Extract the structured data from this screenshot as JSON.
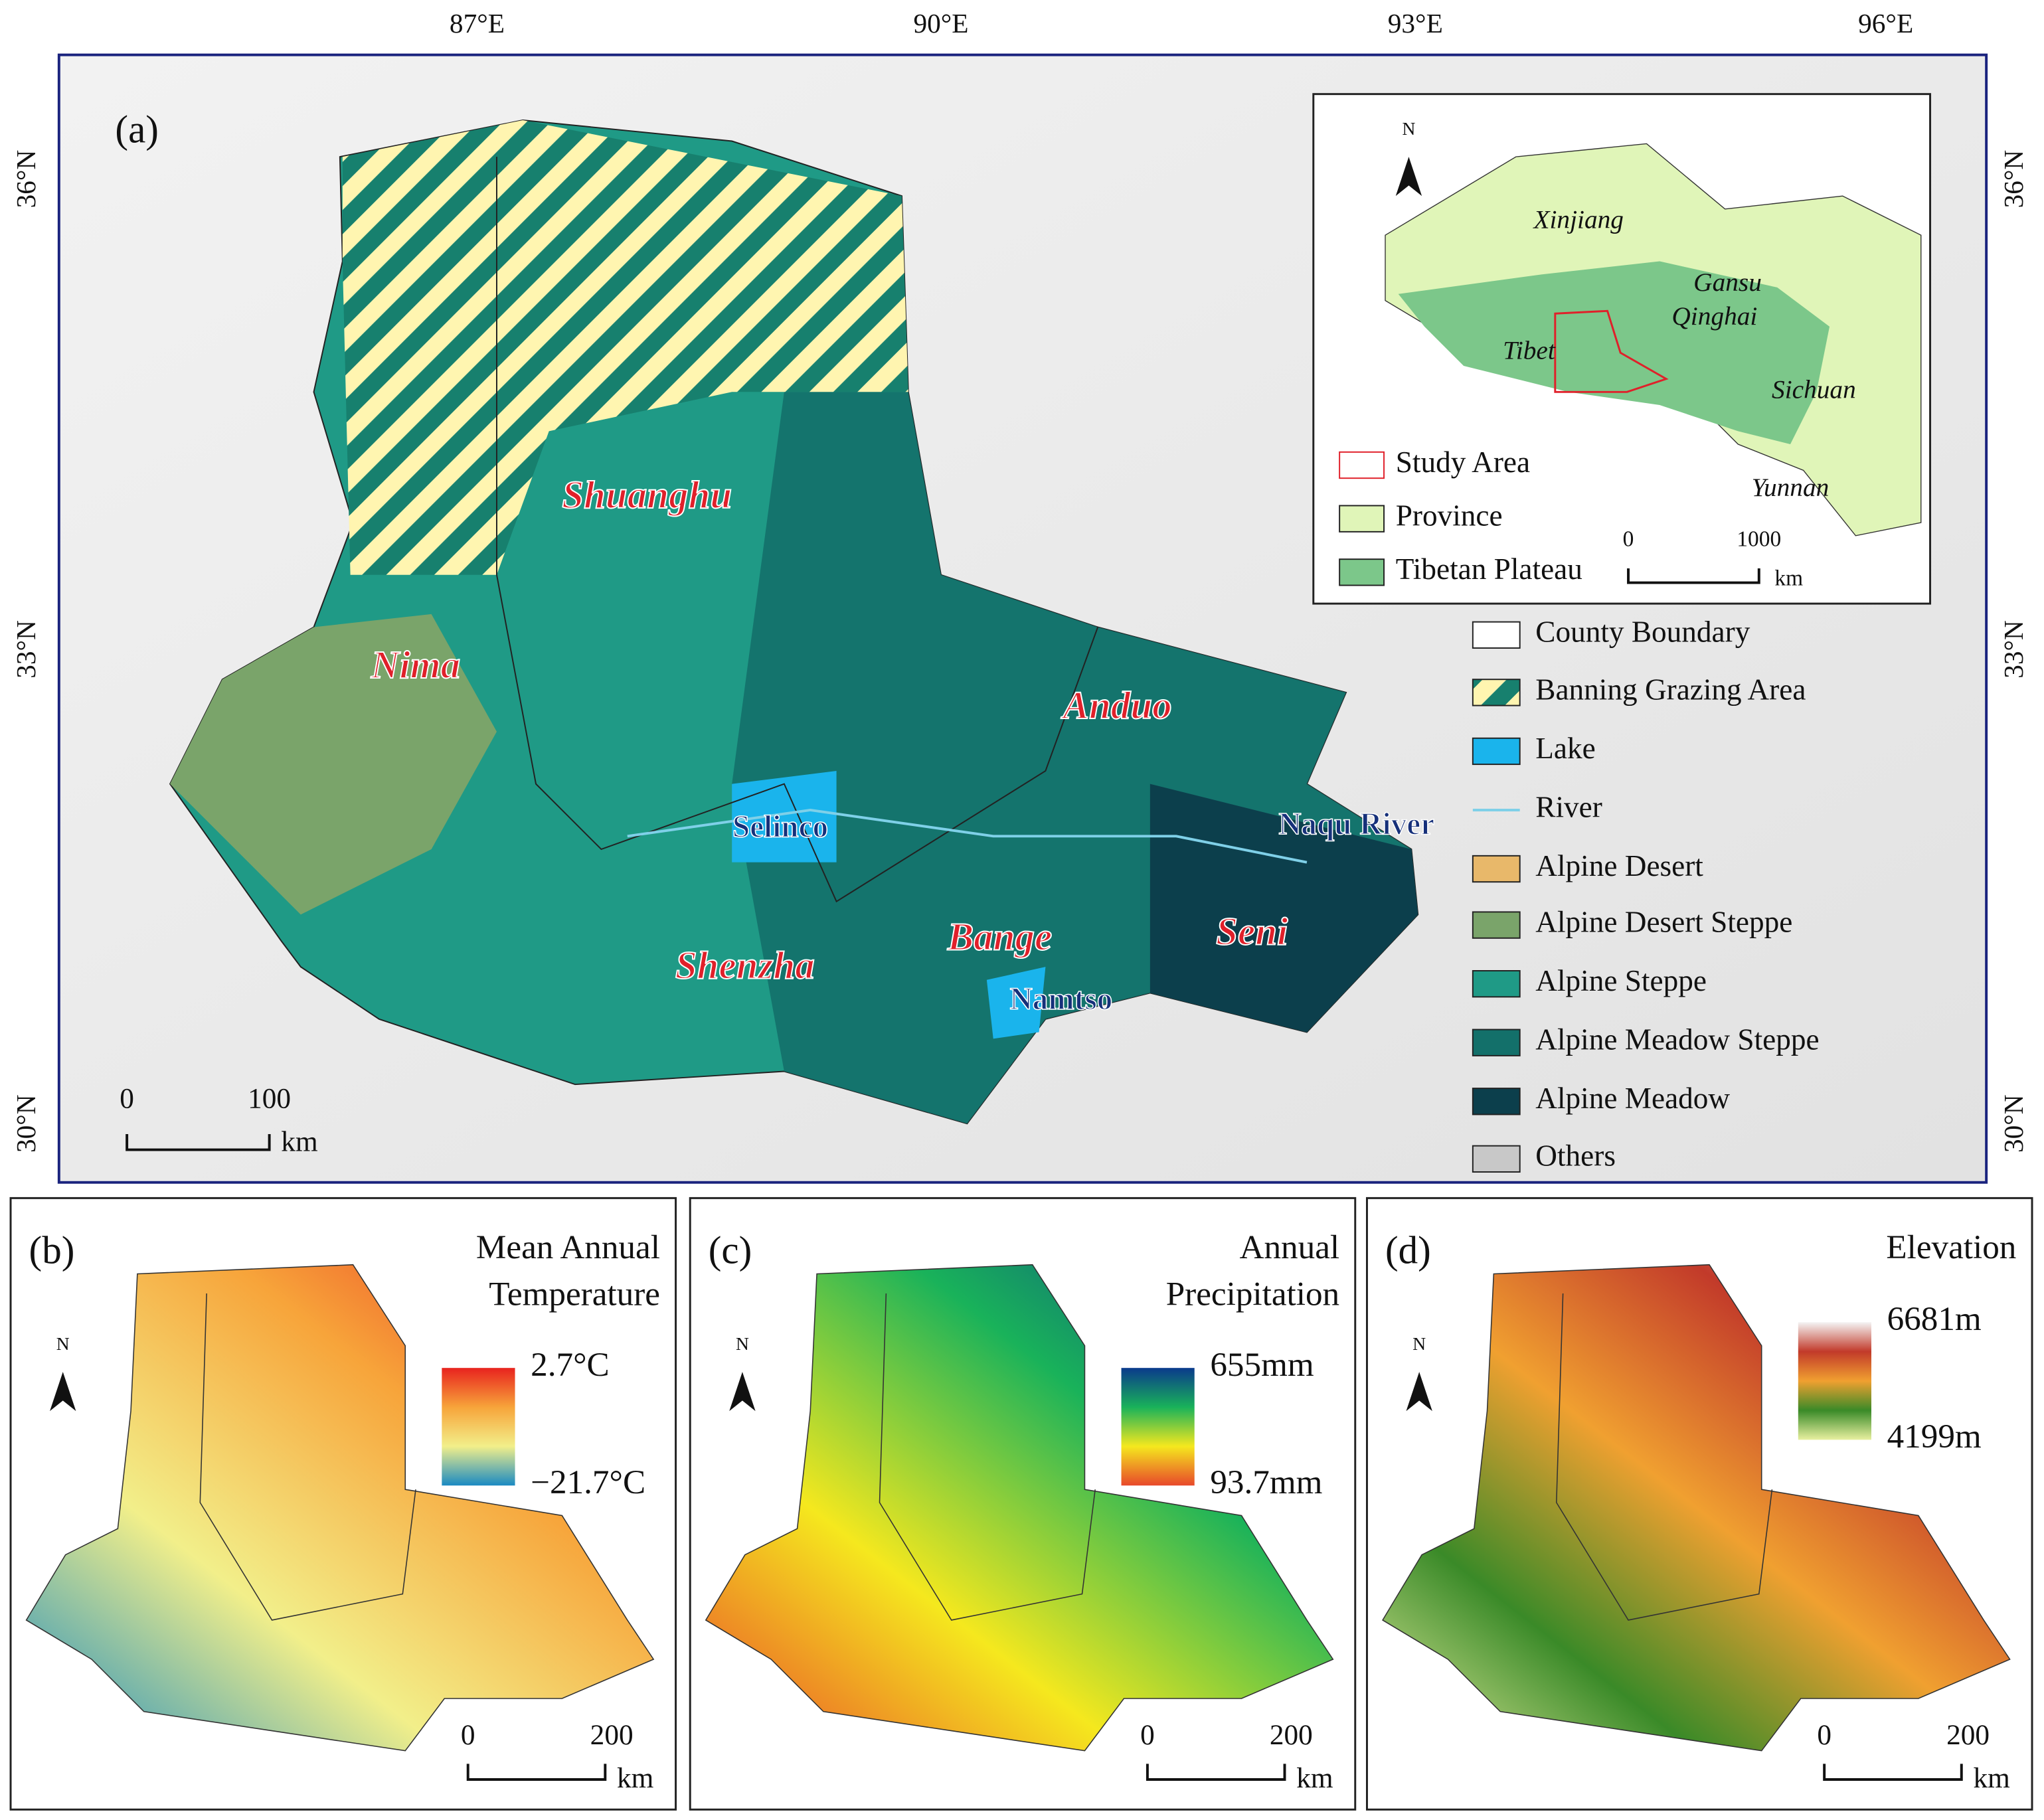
{
  "panel_a": {
    "label": "(a)",
    "lon_ticks": [
      "87°E",
      "90°E",
      "93°E",
      "96°E"
    ],
    "lat_ticks": [
      "36°N",
      "33°N",
      "30°N"
    ],
    "counties": [
      "Shuanghu",
      "Nima",
      "Anduo",
      "Shenzha",
      "Bange",
      "Seni"
    ],
    "water": [
      "Selinco",
      "Naqu River",
      "Namtso"
    ],
    "legend": [
      {
        "name": "County Boundary",
        "color": "#ffffff"
      },
      {
        "name": "Banning Grazing Area",
        "color": "#fff5b0"
      },
      {
        "name": "Lake",
        "color": "#1ab4ec"
      },
      {
        "name": "River",
        "color": "#7fd0e8"
      },
      {
        "name": "Alpine Desert",
        "color": "#e8b86a"
      },
      {
        "name": "Alpine Desert Steppe",
        "color": "#7aa46a"
      },
      {
        "name": "Alpine Steppe",
        "color": "#1f9a86"
      },
      {
        "name": "Alpine Meadow Steppe",
        "color": "#13706a"
      },
      {
        "name": "Alpine Meadow",
        "color": "#0c3f4c"
      },
      {
        "name": "Others",
        "color": "#c8c8c8"
      }
    ],
    "scale_bar": {
      "ticks": [
        "0",
        "100"
      ],
      "unit": "km"
    },
    "inset": {
      "north": "N",
      "regions": [
        "Xinjiang",
        "Gansu",
        "Qinghai",
        "Tibet",
        "Sichuan",
        "Yunnan"
      ],
      "legend": [
        {
          "name": "Study Area",
          "color": "#ffffff"
        },
        {
          "name": "Province",
          "color": "#e0f5b8"
        },
        {
          "name": "Tibetan Plateau",
          "color": "#7cc78a"
        }
      ],
      "scale_bar": {
        "ticks": [
          "0",
          "1000"
        ],
        "unit": "km"
      }
    }
  },
  "panel_b": {
    "label": "(b)",
    "title": [
      "Mean Annual",
      "Temperature"
    ],
    "colorbar": {
      "max": "2.7°C",
      "min": "−21.7°C",
      "colors": [
        "#e8231e",
        "#f7a43a",
        "#f2ef8a",
        "#1a8ac2"
      ]
    },
    "north": "N",
    "scale_bar": {
      "ticks": [
        "0",
        "200"
      ],
      "unit": "km"
    }
  },
  "panel_c": {
    "label": "(c)",
    "title": [
      "Annual",
      "Precipitation"
    ],
    "colorbar": {
      "max": "655mm",
      "min": "93.7mm",
      "colors": [
        "#0a3a8c",
        "#19b25a",
        "#f5e81e",
        "#e8482a"
      ]
    },
    "north": "N",
    "scale_bar": {
      "ticks": [
        "0",
        "200"
      ],
      "unit": "km"
    }
  },
  "panel_d": {
    "label": "(d)",
    "title": [
      "Elevation"
    ],
    "colorbar": {
      "max": "6681m",
      "min": "4199m",
      "colors": [
        "#f4f4f4",
        "#c23a2a",
        "#f0a030",
        "#3a8a28",
        "#e8f0a0"
      ]
    },
    "north": "N",
    "scale_bar": {
      "ticks": [
        "0",
        "200"
      ],
      "unit": "km"
    }
  }
}
